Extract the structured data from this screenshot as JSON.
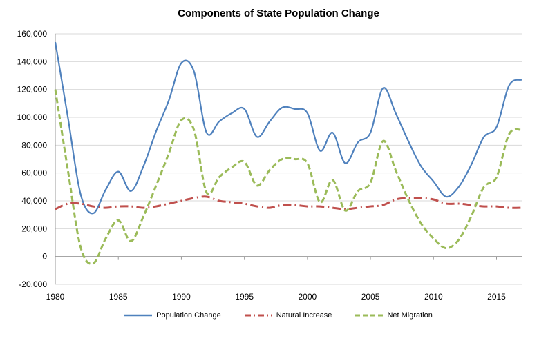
{
  "chart_data": {
    "type": "line",
    "title": "Components of State Population Change",
    "xlabel": "",
    "ylabel": "",
    "x": [
      1980,
      1981,
      1982,
      1983,
      1984,
      1985,
      1986,
      1987,
      1988,
      1989,
      1990,
      1991,
      1992,
      1993,
      1994,
      1995,
      1996,
      1997,
      1998,
      1999,
      2000,
      2001,
      2002,
      2003,
      2004,
      2005,
      2006,
      2007,
      2008,
      2009,
      2010,
      2011,
      2012,
      2013,
      2014,
      2015,
      2016,
      2017
    ],
    "xlim": [
      1980,
      2017
    ],
    "ylim": [
      -20000,
      160000
    ],
    "x_ticks": [
      "1980",
      "1985",
      "1990",
      "1995",
      "2000",
      "2005",
      "2010",
      "2015"
    ],
    "y_ticks": [
      "-20,000",
      "0",
      "20,000",
      "40,000",
      "60,000",
      "80,000",
      "100,000",
      "120,000",
      "140,000",
      "160,000"
    ],
    "grid": "horizontal",
    "legend_position": "bottom",
    "series": [
      {
        "name": "Population Change",
        "color": "#4f81bd",
        "style": "solid",
        "values": [
          154000,
          100000,
          45000,
          31000,
          48000,
          61000,
          47000,
          65000,
          90000,
          112000,
          139000,
          133000,
          89000,
          97000,
          103000,
          106000,
          86000,
          97000,
          107000,
          106000,
          103000,
          76000,
          89000,
          67000,
          82000,
          89000,
          121000,
          103000,
          83000,
          65000,
          54000,
          43000,
          50000,
          66000,
          86000,
          93000,
          123000,
          127000
        ]
      },
      {
        "name": "Natural Increase",
        "color": "#c0504d",
        "style": "dash-dot",
        "values": [
          34000,
          38000,
          38000,
          36000,
          35000,
          36000,
          36000,
          35000,
          36000,
          38000,
          40000,
          42000,
          43000,
          40000,
          39000,
          38000,
          36000,
          35000,
          37000,
          37000,
          36000,
          36000,
          35000,
          34000,
          35000,
          36000,
          37000,
          41000,
          42000,
          42000,
          41000,
          38000,
          38000,
          37000,
          36000,
          36000,
          35000,
          35000
        ]
      },
      {
        "name": "Net Migration",
        "color": "#9bbb59",
        "style": "dashed",
        "values": [
          120000,
          62000,
          7000,
          -5000,
          13000,
          26000,
          11000,
          29000,
          51000,
          74000,
          98000,
          91000,
          46000,
          57000,
          64000,
          68000,
          51000,
          62000,
          70000,
          70000,
          67000,
          39000,
          55000,
          33000,
          47000,
          53000,
          83000,
          62000,
          41000,
          24000,
          13000,
          6000,
          12000,
          29000,
          50000,
          57000,
          88000,
          91000
        ]
      }
    ]
  }
}
